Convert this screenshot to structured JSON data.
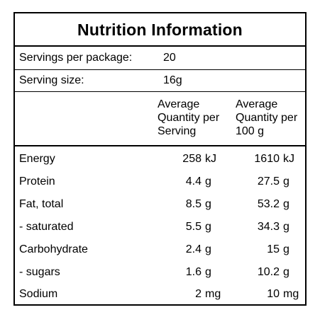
{
  "title": "Nutrition Information",
  "servings_per_package": {
    "label": "Servings per package:",
    "value": "20"
  },
  "serving_size": {
    "label": "Serving size:",
    "value": "16g"
  },
  "columns": {
    "per_serving": "Average\nQuantity per\nServing",
    "per_100g": "Average\nQuantity per\n100 g"
  },
  "rows": [
    {
      "name": "Energy",
      "serving": "258",
      "serving_unit": "kJ",
      "per100": "1610",
      "per100_unit": "kJ"
    },
    {
      "name": "Protein",
      "serving": "4.4",
      "serving_unit": "g",
      "per100": "27.5",
      "per100_unit": "g"
    },
    {
      "name": "Fat, total",
      "serving": "8.5",
      "serving_unit": "g",
      "per100": "53.2",
      "per100_unit": "g"
    },
    {
      "name": "- saturated",
      "serving": "5.5",
      "serving_unit": "g",
      "per100": "34.3",
      "per100_unit": "g"
    },
    {
      "name": "Carbohydrate",
      "serving": "2.4",
      "serving_unit": "g",
      "per100": "15",
      "per100_unit": "g"
    },
    {
      "name": "- sugars",
      "serving": "1.6",
      "serving_unit": "g",
      "per100": "10.2",
      "per100_unit": "g"
    },
    {
      "name": "Sodium",
      "serving": "2",
      "serving_unit": "mg",
      "per100": "10",
      "per100_unit": "mg"
    }
  ]
}
